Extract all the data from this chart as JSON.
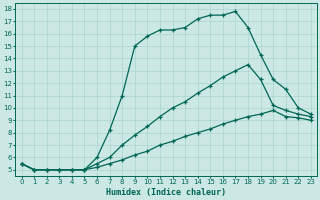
{
  "xlabel": "Humidex (Indice chaleur)",
  "bg_color": "#cce8e4",
  "line_color": "#006655",
  "grid_color": "#aad4d0",
  "xlim": [
    -0.5,
    23.5
  ],
  "ylim": [
    4.5,
    18.5
  ],
  "xticks": [
    0,
    1,
    2,
    3,
    4,
    5,
    6,
    7,
    8,
    9,
    10,
    11,
    12,
    13,
    14,
    15,
    16,
    17,
    18,
    19,
    20,
    21,
    22,
    23
  ],
  "yticks": [
    5,
    6,
    7,
    8,
    9,
    10,
    11,
    12,
    13,
    14,
    15,
    16,
    17,
    18
  ],
  "curve1_x": [
    0,
    1,
    2,
    3,
    4,
    5,
    6,
    7,
    8,
    9,
    10,
    11,
    12,
    13,
    14,
    15,
    16,
    17,
    18,
    19,
    20,
    21,
    22,
    23
  ],
  "curve1_y": [
    5.5,
    5.0,
    5.0,
    5.0,
    5.0,
    5.0,
    6.0,
    8.2,
    11.0,
    15.0,
    15.8,
    16.3,
    16.3,
    16.5,
    17.2,
    17.5,
    17.5,
    17.8,
    16.5,
    14.3,
    12.3,
    11.5,
    10.0,
    9.5
  ],
  "curve2_x": [
    0,
    1,
    2,
    3,
    4,
    5,
    6,
    7,
    8,
    9,
    10,
    11,
    12,
    13,
    14,
    15,
    16,
    17,
    18,
    19,
    20,
    21,
    22,
    23
  ],
  "curve2_y": [
    5.5,
    5.0,
    5.0,
    5.0,
    5.0,
    5.0,
    5.5,
    6.0,
    7.0,
    7.8,
    8.5,
    9.3,
    10.0,
    10.5,
    11.2,
    11.8,
    12.5,
    13.0,
    13.5,
    12.3,
    10.2,
    9.8,
    9.5,
    9.3
  ],
  "curve3_x": [
    0,
    1,
    2,
    3,
    4,
    5,
    6,
    7,
    8,
    9,
    10,
    11,
    12,
    13,
    14,
    15,
    16,
    17,
    18,
    19,
    20,
    21,
    22,
    23
  ],
  "curve3_y": [
    5.5,
    5.0,
    5.0,
    5.0,
    5.0,
    5.0,
    5.2,
    5.5,
    5.8,
    6.2,
    6.5,
    7.0,
    7.3,
    7.7,
    8.0,
    8.3,
    8.7,
    9.0,
    9.3,
    9.5,
    9.8,
    9.3,
    9.2,
    9.0
  ]
}
